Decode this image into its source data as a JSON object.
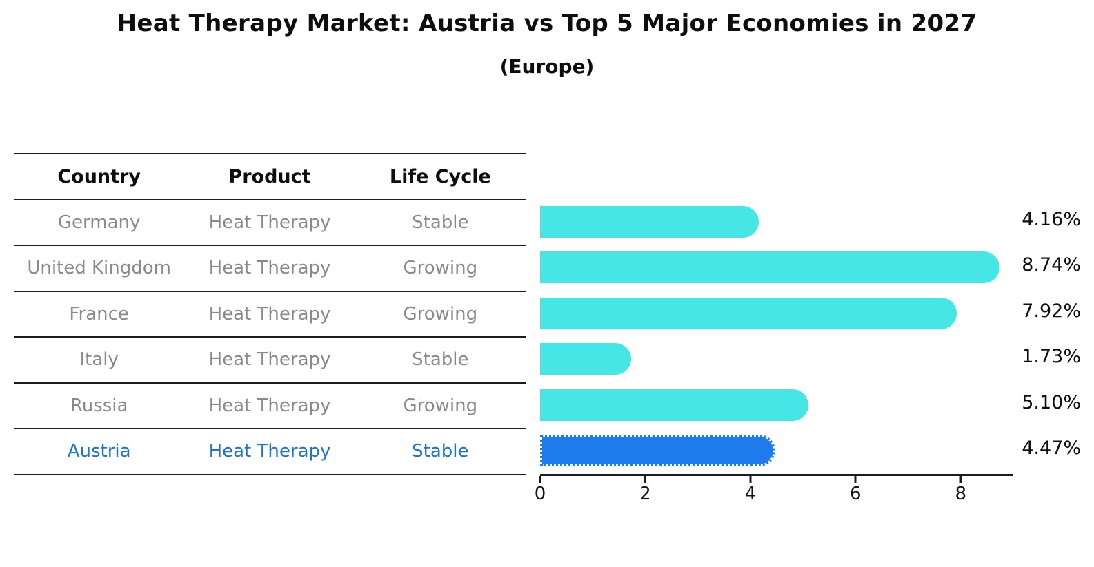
{
  "header": {
    "title": "Heat Therapy Market: Austria vs Top 5 Major Economies in 2027",
    "subtitle": "(Europe)"
  },
  "table": {
    "headers": [
      "Country",
      "Product",
      "Life Cycle"
    ],
    "rows": [
      {
        "country": "Germany",
        "product": "Heat Therapy",
        "life_cycle": "Stable",
        "highlight": false
      },
      {
        "country": "United Kingdom",
        "product": "Heat Therapy",
        "life_cycle": "Growing",
        "highlight": false
      },
      {
        "country": "France",
        "product": "Heat Therapy",
        "life_cycle": "Growing",
        "highlight": false
      },
      {
        "country": "Italy",
        "product": "Heat Therapy",
        "life_cycle": "Stable",
        "highlight": false
      },
      {
        "country": "Russia",
        "product": "Heat Therapy",
        "life_cycle": "Growing",
        "highlight": false
      },
      {
        "country": "Austria",
        "product": "Heat Therapy",
        "life_cycle": "Stable",
        "highlight": true
      }
    ]
  },
  "chart_data": {
    "type": "bar",
    "orientation": "horizontal",
    "title": "Heat Therapy Market: Austria vs Top 5 Major Economies in 2027 (Europe)",
    "categories": [
      "Germany",
      "United Kingdom",
      "France",
      "Italy",
      "Russia",
      "Austria"
    ],
    "values": [
      4.16,
      8.74,
      7.92,
      1.73,
      5.1,
      4.47
    ],
    "labels": [
      "4.16%",
      "8.74%",
      "7.92%",
      "1.73%",
      "5.10%",
      "4.47%"
    ],
    "xticks": [
      0,
      2,
      4,
      6,
      8
    ],
    "xlim": [
      0,
      9
    ],
    "grid": false,
    "legend": "none",
    "bar_color": "#45e6e5",
    "highlight_color": "#1e7bec",
    "highlight_index": 5,
    "highlight_text_color": "#1a74d2",
    "row_text_color": "#8a8a8a"
  }
}
